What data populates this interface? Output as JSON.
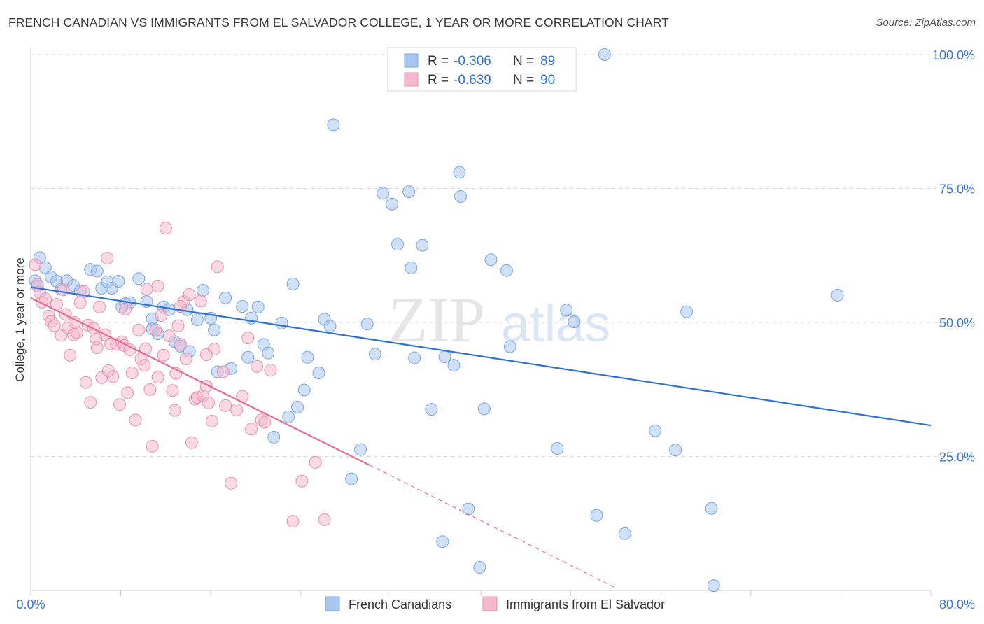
{
  "title": "FRENCH CANADIAN VS IMMIGRANTS FROM EL SALVADOR COLLEGE, 1 YEAR OR MORE CORRELATION CHART",
  "source": "Source: ZipAtlas.com",
  "watermark": {
    "zip": "ZIP",
    "atlas": "atlas"
  },
  "colors": {
    "blue_fill": "#a9c7ee",
    "blue_stroke": "#7aa6e0",
    "blue_line": "#2f72d6",
    "pink_fill": "#f4b9cd",
    "pink_stroke": "#e890ae",
    "pink_line": "#e46b95",
    "tick_text": "#3d78c8",
    "grid": "#d9d9d9"
  },
  "legend_top": {
    "rows": [
      {
        "r_label": "R =",
        "r_value": "-0.306",
        "n_label": "N =",
        "n_value": "89",
        "color": "blue"
      },
      {
        "r_label": "R =",
        "r_value": "-0.639",
        "n_label": "N =",
        "n_value": "90",
        "color": "pink"
      }
    ]
  },
  "legend_bottom": [
    "French Canadians",
    "Immigrants from El Salvador"
  ],
  "chart_data": {
    "type": "scatter",
    "ylabel": "College, 1 year or more",
    "xlim": [
      0,
      80
    ],
    "ylim": [
      0,
      100
    ],
    "x_tick_labels": [
      "0.0%",
      "80.0%"
    ],
    "y_ticks": [
      25,
      50,
      75,
      100
    ],
    "y_tick_labels": [
      "25.0%",
      "50.0%",
      "75.0%",
      "100.0%"
    ],
    "grid": "horizontal dashed",
    "series": [
      {
        "name": "French Canadians",
        "color": "blue",
        "trend": {
          "x": [
            0,
            80
          ],
          "y": [
            56.6,
            30.8
          ]
        },
        "points": [
          [
            0.4,
            57.8
          ],
          [
            0.8,
            62.1
          ],
          [
            1.3,
            60.2
          ],
          [
            1.8,
            58.5
          ],
          [
            2.3,
            57.7
          ],
          [
            2.7,
            56.2
          ],
          [
            3.2,
            57.8
          ],
          [
            3.8,
            56.9
          ],
          [
            4.4,
            55.9
          ],
          [
            5.3,
            59.9
          ],
          [
            5.9,
            59.6
          ],
          [
            6.3,
            56.4
          ],
          [
            6.8,
            57.6
          ],
          [
            7.2,
            56.4
          ],
          [
            7.8,
            57.7
          ],
          [
            8.4,
            53.5
          ],
          [
            8.8,
            53.7
          ],
          [
            9.6,
            58.2
          ],
          [
            10.3,
            53.9
          ],
          [
            10.8,
            50.7
          ],
          [
            10.8,
            48.8
          ],
          [
            11.3,
            47.9
          ],
          [
            11.8,
            52.9
          ],
          [
            12.3,
            52.4
          ],
          [
            12.8,
            46.4
          ],
          [
            13.3,
            45.6
          ],
          [
            14.1,
            44.6
          ],
          [
            14.8,
            50.5
          ],
          [
            15.3,
            56.0
          ],
          [
            16.0,
            50.8
          ],
          [
            16.3,
            48.6
          ],
          [
            16.6,
            40.8
          ],
          [
            17.3,
            54.6
          ],
          [
            17.8,
            41.4
          ],
          [
            18.8,
            53.0
          ],
          [
            19.3,
            43.5
          ],
          [
            19.6,
            50.8
          ],
          [
            20.2,
            52.9
          ],
          [
            20.7,
            45.9
          ],
          [
            21.1,
            44.3
          ],
          [
            21.6,
            28.6
          ],
          [
            22.3,
            49.9
          ],
          [
            22.9,
            32.4
          ],
          [
            23.3,
            57.2
          ],
          [
            23.7,
            34.2
          ],
          [
            24.3,
            37.4
          ],
          [
            24.6,
            43.5
          ],
          [
            25.6,
            40.6
          ],
          [
            26.1,
            50.6
          ],
          [
            26.6,
            49.3
          ],
          [
            26.9,
            86.9
          ],
          [
            28.5,
            20.8
          ],
          [
            29.3,
            26.3
          ],
          [
            29.9,
            49.7
          ],
          [
            30.6,
            44.1
          ],
          [
            31.3,
            74.1
          ],
          [
            32.1,
            72.1
          ],
          [
            32.6,
            64.6
          ],
          [
            33.6,
            74.4
          ],
          [
            33.8,
            60.2
          ],
          [
            34.1,
            43.4
          ],
          [
            34.8,
            64.4
          ],
          [
            35.6,
            33.8
          ],
          [
            36.6,
            9.1
          ],
          [
            36.8,
            43.6
          ],
          [
            37.6,
            42.0
          ],
          [
            38.1,
            78.0
          ],
          [
            38.2,
            73.5
          ],
          [
            38.9,
            15.2
          ],
          [
            39.9,
            4.3
          ],
          [
            40.3,
            33.9
          ],
          [
            40.9,
            61.7
          ],
          [
            42.3,
            59.7
          ],
          [
            42.6,
            45.5
          ],
          [
            46.8,
            26.5
          ],
          [
            47.6,
            52.3
          ],
          [
            48.3,
            50.1
          ],
          [
            50.3,
            14.0
          ],
          [
            51.0,
            100.0
          ],
          [
            52.8,
            10.6
          ],
          [
            55.5,
            29.8
          ],
          [
            57.3,
            26.2
          ],
          [
            58.3,
            52.0
          ],
          [
            60.5,
            15.3
          ],
          [
            60.7,
            0.9
          ],
          [
            71.7,
            55.1
          ],
          [
            0.6,
            56.8
          ],
          [
            13.9,
            52.4
          ],
          [
            8.1,
            52.9
          ]
        ]
      },
      {
        "name": "Immigrants from El Salvador",
        "color": "pink",
        "trend": {
          "x": [
            0,
            30.1
          ],
          "y": [
            54.6,
            23.4
          ]
        },
        "trend_extension": {
          "x": [
            30.1,
            52.0
          ],
          "y": [
            23.4,
            0.5
          ]
        },
        "points": [
          [
            0.4,
            60.8
          ],
          [
            0.6,
            57.1
          ],
          [
            0.8,
            55.6
          ],
          [
            1.0,
            53.8
          ],
          [
            1.3,
            54.4
          ],
          [
            1.6,
            51.2
          ],
          [
            1.8,
            50.2
          ],
          [
            2.1,
            49.4
          ],
          [
            2.3,
            53.4
          ],
          [
            2.7,
            47.6
          ],
          [
            2.9,
            56.1
          ],
          [
            3.1,
            51.5
          ],
          [
            3.3,
            49.0
          ],
          [
            3.5,
            43.9
          ],
          [
            3.8,
            47.7
          ],
          [
            4.1,
            48.1
          ],
          [
            4.4,
            53.7
          ],
          [
            4.7,
            55.8
          ],
          [
            4.9,
            38.8
          ],
          [
            5.1,
            49.5
          ],
          [
            5.3,
            35.1
          ],
          [
            5.6,
            48.9
          ],
          [
            5.9,
            45.3
          ],
          [
            6.1,
            52.9
          ],
          [
            6.3,
            39.7
          ],
          [
            6.6,
            47.7
          ],
          [
            6.8,
            62.0
          ],
          [
            7.1,
            46.0
          ],
          [
            7.3,
            39.9
          ],
          [
            7.6,
            45.9
          ],
          [
            7.9,
            34.7
          ],
          [
            8.1,
            46.4
          ],
          [
            8.3,
            45.7
          ],
          [
            8.6,
            36.9
          ],
          [
            8.8,
            44.9
          ],
          [
            9.0,
            40.6
          ],
          [
            9.3,
            31.8
          ],
          [
            9.6,
            48.6
          ],
          [
            9.8,
            43.2
          ],
          [
            10.1,
            42.0
          ],
          [
            10.3,
            56.2
          ],
          [
            10.6,
            37.5
          ],
          [
            10.8,
            26.9
          ],
          [
            11.1,
            48.6
          ],
          [
            11.3,
            39.8
          ],
          [
            11.6,
            51.3
          ],
          [
            11.8,
            43.9
          ],
          [
            12.0,
            67.6
          ],
          [
            12.3,
            47.5
          ],
          [
            12.6,
            37.3
          ],
          [
            12.8,
            33.6
          ],
          [
            13.1,
            49.4
          ],
          [
            13.3,
            45.9
          ],
          [
            13.6,
            53.9
          ],
          [
            13.8,
            43.2
          ],
          [
            14.1,
            55.2
          ],
          [
            14.3,
            27.6
          ],
          [
            14.6,
            35.7
          ],
          [
            14.8,
            36.0
          ],
          [
            15.1,
            54.0
          ],
          [
            15.3,
            36.3
          ],
          [
            15.6,
            38.1
          ],
          [
            15.8,
            35.0
          ],
          [
            16.1,
            31.6
          ],
          [
            16.3,
            45.0
          ],
          [
            16.6,
            60.4
          ],
          [
            17.1,
            40.8
          ],
          [
            17.3,
            34.5
          ],
          [
            17.8,
            20.0
          ],
          [
            18.3,
            33.7
          ],
          [
            18.8,
            36.2
          ],
          [
            19.3,
            47.1
          ],
          [
            19.6,
            30.1
          ],
          [
            20.1,
            41.8
          ],
          [
            20.5,
            31.8
          ],
          [
            20.8,
            31.4
          ],
          [
            21.3,
            41.1
          ],
          [
            23.3,
            12.9
          ],
          [
            24.1,
            20.4
          ],
          [
            25.3,
            23.9
          ],
          [
            26.1,
            13.2
          ],
          [
            8.4,
            52.5
          ],
          [
            11.3,
            56.8
          ],
          [
            13.3,
            53.0
          ],
          [
            15.6,
            44.0
          ],
          [
            6.9,
            41.0
          ],
          [
            12.9,
            40.5
          ],
          [
            10.2,
            45.1
          ],
          [
            5.8,
            46.9
          ],
          [
            3.9,
            50.0
          ]
        ]
      }
    ]
  }
}
